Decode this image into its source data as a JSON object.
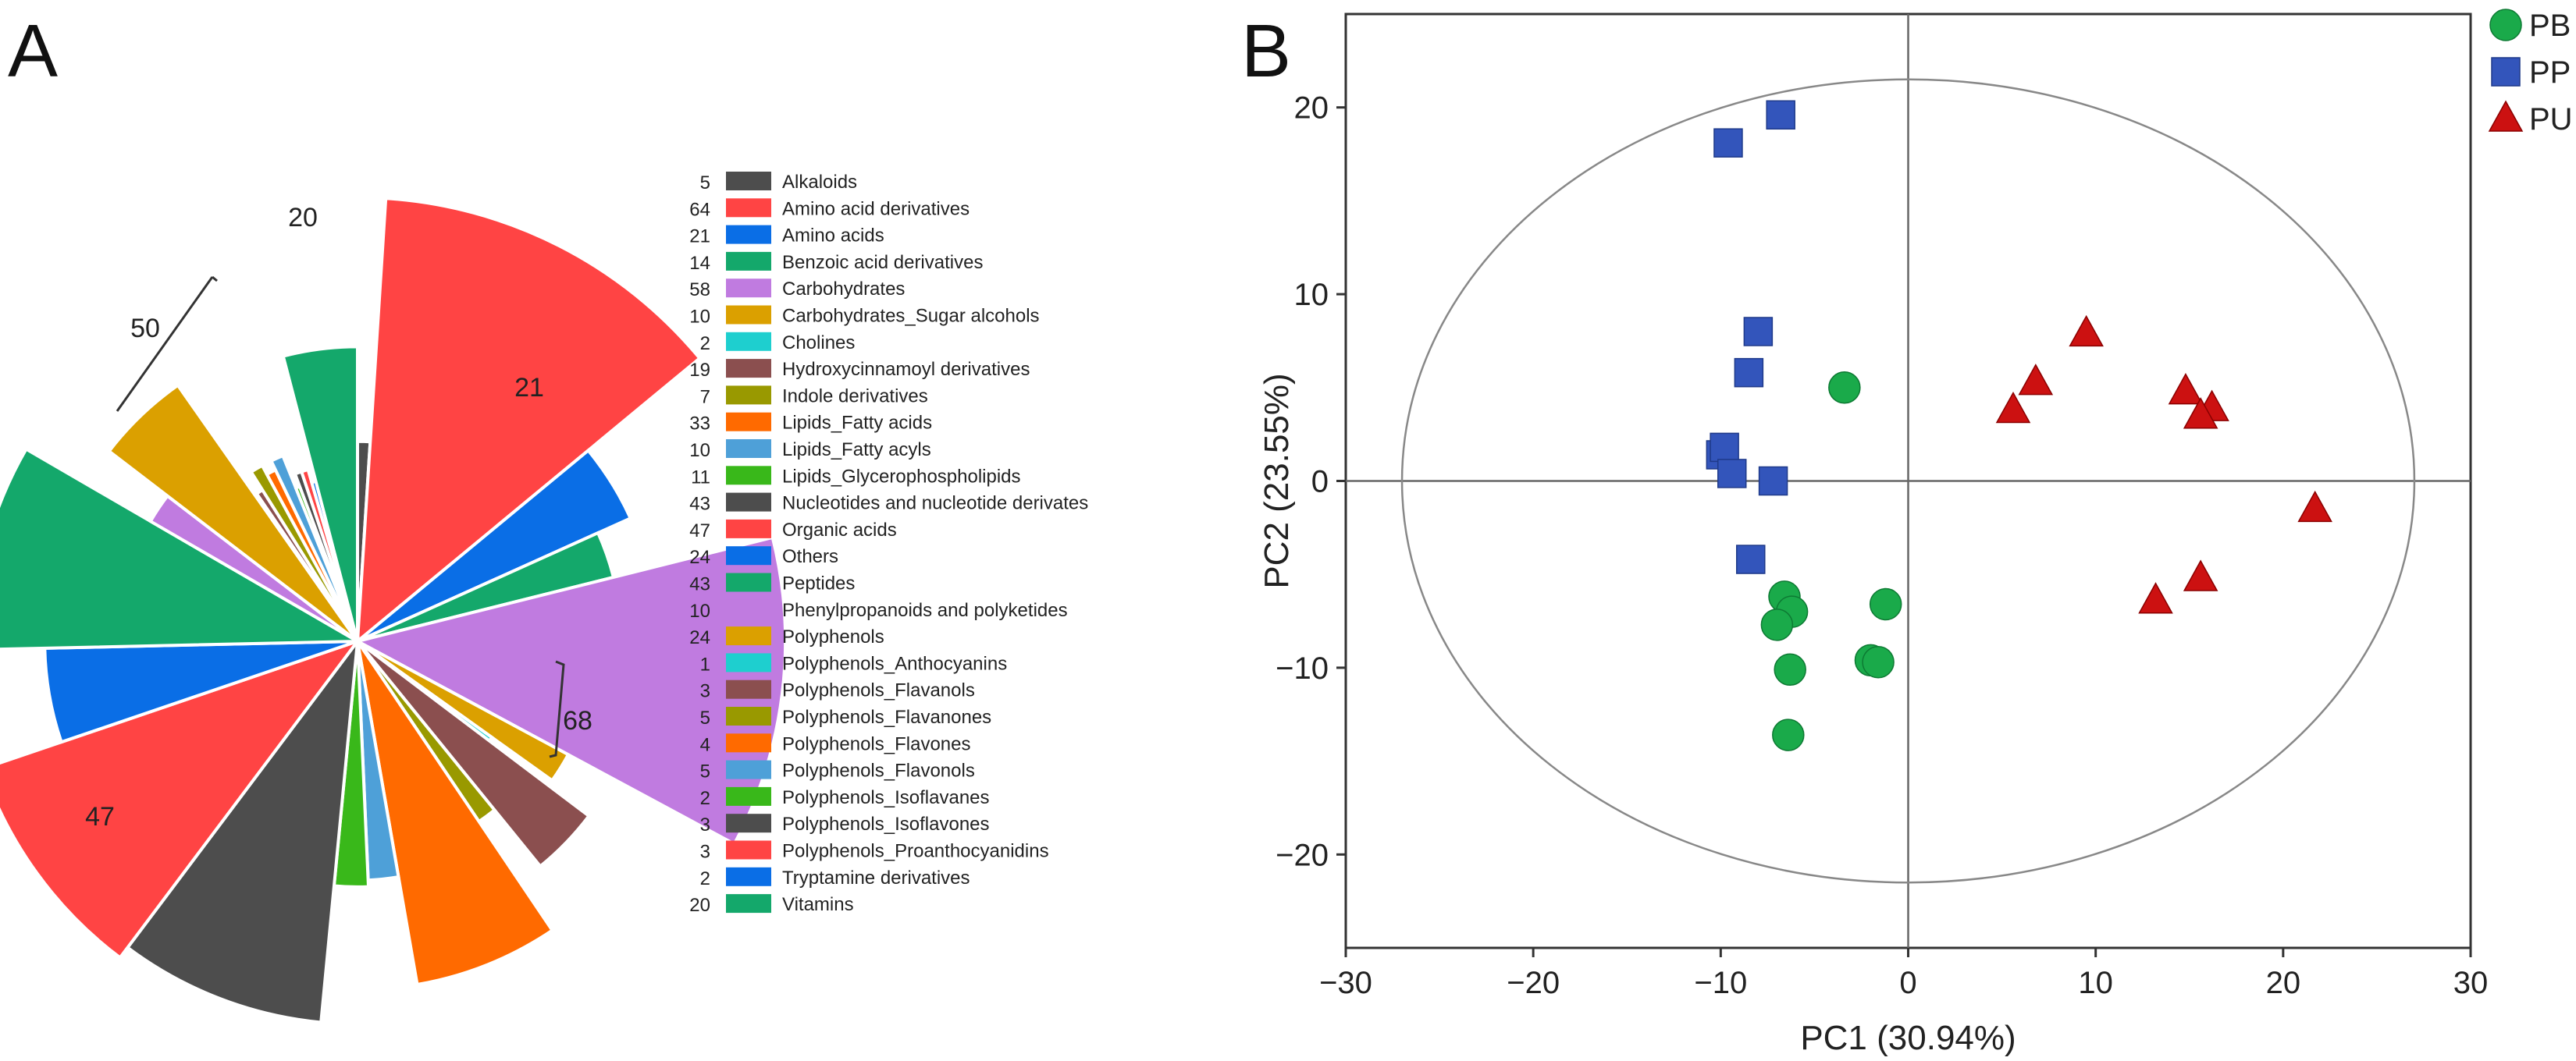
{
  "panels": {
    "a": {
      "label": "A"
    },
    "b": {
      "label": "B"
    }
  },
  "chart_data": [
    {
      "type": "pie",
      "variant": "rose (radius proportional to count)",
      "categories": [
        "Alkaloids",
        "Amino acid derivatives",
        "Amino acids",
        "Benzoic acid derivatives",
        "Carbohydrates",
        "Carbohydrates_Sugar alcohols",
        "Cholines",
        "Hydroxycinnamoyl derivatives",
        "Indole derivatives",
        "Lipids_Fatty acids",
        "Lipids_Fatty acyls",
        "Lipids_Glycerophospholipids",
        "Nucleotides and nucleotide derivates",
        "Organic acids",
        "Others",
        "Peptides",
        "Phenylpropanoids and polyketides",
        "Polyphenols",
        "Polyphenols_Anthocyanins",
        "Polyphenols_Flavanols",
        "Polyphenols_Flavanones",
        "Polyphenols_Flavones",
        "Polyphenols_Flavonols",
        "Polyphenols_Isoflavanes",
        "Polyphenols_Isoflavones",
        "Polyphenols_Proanthocyanidins",
        "Tryptamine derivatives",
        "Vitamins"
      ],
      "values": [
        5,
        64,
        21,
        14,
        58,
        10,
        2,
        19,
        7,
        33,
        10,
        11,
        43,
        47,
        24,
        43,
        10,
        24,
        1,
        3,
        5,
        4,
        5,
        2,
        3,
        3,
        2,
        20
      ],
      "colors": [
        "#4d4d4d",
        "#ff4444",
        "#0a6ee6",
        "#14a86b",
        "#c07be0",
        "#dba000",
        "#1ecfcf",
        "#8b4f4f",
        "#999900",
        "#ff6a00",
        "#4ea0d8",
        "#39b81a",
        "#4d4d4d",
        "#ff4444",
        "#0a6ee6",
        "#14a86b",
        "#c07be0",
        "#dba000",
        "#1ecfcf",
        "#8b4f4f",
        "#999900",
        "#ff6a00",
        "#4ea0d8",
        "#39b81a",
        "#4d4d4d",
        "#ff4444",
        "#0a6ee6",
        "#14a86b"
      ],
      "annotations": [
        "20",
        "21",
        "68",
        "47",
        "50"
      ]
    },
    {
      "type": "scatter",
      "title": "",
      "xlabel": "PC1 (30.94%)",
      "ylabel": "PC2 (23.55%)",
      "xlim": [
        -30,
        30
      ],
      "ylim": [
        -25,
        25
      ],
      "xticks": [
        -30,
        -20,
        -10,
        0,
        10,
        20,
        30
      ],
      "yticks": [
        -20,
        -10,
        0,
        10,
        20
      ],
      "xtick_labels": [
        "−30",
        "−20",
        "−10",
        "0",
        "10",
        "20",
        "30"
      ],
      "ytick_labels": [
        "−20",
        "−10",
        "0",
        "10",
        "20"
      ],
      "ellipse": {
        "cx": 0,
        "cy": 0,
        "rx": 27,
        "ry": 21.5
      },
      "legend_position": "top-right",
      "series": [
        {
          "name": "PB",
          "marker": "circle",
          "color": "#1aaa4a",
          "points": [
            [
              -3.4,
              5.0
            ],
            [
              -6.6,
              -6.2
            ],
            [
              -6.2,
              -7.0
            ],
            [
              -7.0,
              -7.7
            ],
            [
              -1.2,
              -6.6
            ],
            [
              -2.0,
              -9.6
            ],
            [
              -1.6,
              -9.7
            ],
            [
              -6.3,
              -10.1
            ],
            [
              -6.4,
              -13.6
            ]
          ]
        },
        {
          "name": "PP",
          "marker": "square",
          "color": "#3355bb",
          "points": [
            [
              -9.6,
              18.1
            ],
            [
              -6.8,
              19.6
            ],
            [
              -8.0,
              8.0
            ],
            [
              -8.5,
              5.8
            ],
            [
              -10.0,
              1.4
            ],
            [
              -9.8,
              1.8
            ],
            [
              -9.4,
              0.4
            ],
            [
              -7.2,
              0.0
            ],
            [
              -8.4,
              -4.2
            ]
          ]
        },
        {
          "name": "PU",
          "marker": "triangle",
          "color": "#cc1111",
          "points": [
            [
              9.5,
              7.9
            ],
            [
              6.8,
              5.3
            ],
            [
              5.6,
              3.8
            ],
            [
              14.8,
              4.8
            ],
            [
              16.2,
              3.9
            ],
            [
              15.6,
              3.5
            ],
            [
              21.7,
              -1.5
            ],
            [
              15.6,
              -5.2
            ],
            [
              13.2,
              -6.4
            ]
          ]
        }
      ]
    }
  ]
}
